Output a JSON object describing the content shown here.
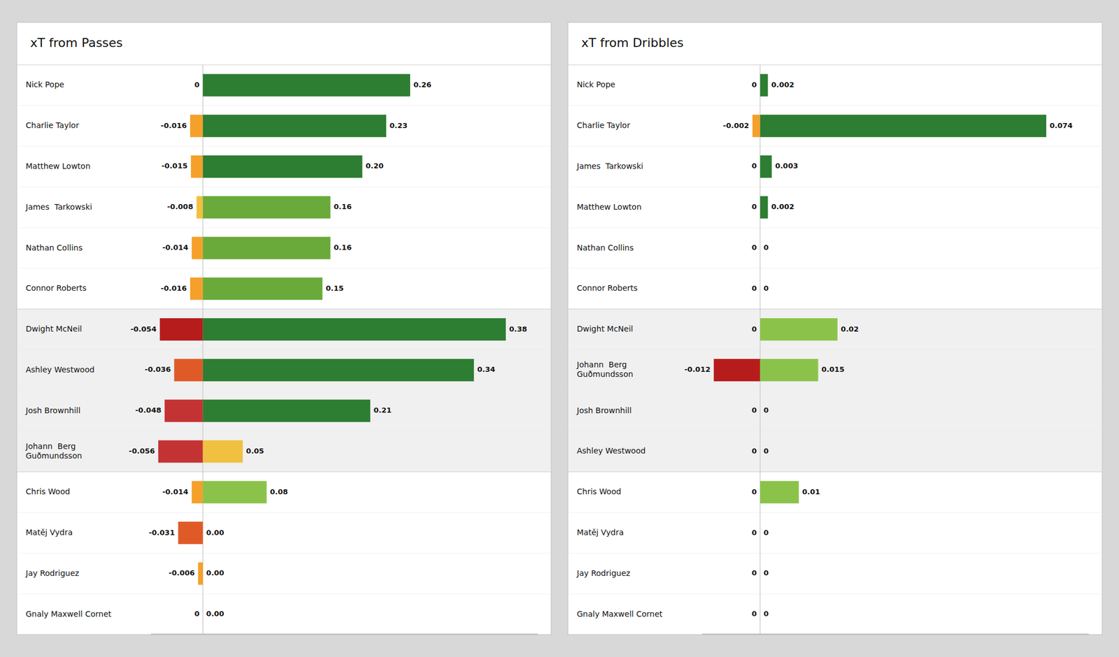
{
  "chart_data": [
    {
      "type": "bar",
      "orientation": "horizontal",
      "stacked": true,
      "title": "xT from Passes",
      "categories": [
        "Nick Pope",
        "Charlie Taylor",
        "Matthew Lowton",
        "James  Tarkowski",
        "Nathan Collins",
        "Connor Roberts",
        "Dwight McNeil",
        "Ashley Westwood",
        "Josh Brownhill",
        "Johann  Berg\nGuðmundsson",
        "Chris Wood",
        "Matěj Vydra",
        "Jay Rodriguez",
        "Gnaly Maxwell Cornet"
      ],
      "series": [
        {
          "values": [
            0.0,
            -0.016,
            -0.015,
            -0.008,
            -0.014,
            -0.016,
            -0.054,
            -0.036,
            -0.048,
            -0.056,
            -0.014,
            -0.031,
            -0.006,
            0.0
          ],
          "colors": [
            "#ffffff",
            "#f5a02a",
            "#f5a02a",
            "#f0c040",
            "#f5a02a",
            "#f5a02a",
            "#b71c1c",
            "#e05a28",
            "#c43333",
            "#c43333",
            "#f5a02a",
            "#e05a28",
            "#f5a02a",
            "#ffffff"
          ]
        },
        {
          "values": [
            0.26,
            0.23,
            0.2,
            0.16,
            0.16,
            0.15,
            0.38,
            0.34,
            0.21,
            0.05,
            0.08,
            0.0,
            0.0,
            0.0
          ],
          "value_labels": [
            "0.26",
            "0.23",
            "0.20",
            "0.16",
            "0.16",
            "0.15",
            "0.38",
            "0.34",
            "0.21",
            "0.05",
            "0.08",
            "0.00",
            "0.00",
            "0.00"
          ],
          "colors": [
            "#2d7d32",
            "#2d7d32",
            "#2d7d32",
            "#6aaa3a",
            "#6aaa3a",
            "#6aaa3a",
            "#2d7d32",
            "#2d7d32",
            "#2d7d32",
            "#f0c040",
            "#8bc34a",
            "#ffffff",
            "#ffffff",
            "#ffffff"
          ]
        }
      ],
      "xlim": [
        -0.065,
        0.42
      ],
      "tick_labels": false,
      "grid": false,
      "data_labels": true
    },
    {
      "type": "bar",
      "orientation": "horizontal",
      "stacked": true,
      "title": "xT from Dribbles",
      "categories": [
        "Nick Pope",
        "Charlie Taylor",
        "James  Tarkowski",
        "Matthew Lowton",
        "Nathan Collins",
        "Connor Roberts",
        "Dwight McNeil",
        "Johann  Berg\nGuðmundsson",
        "Josh Brownhill",
        "Ashley Westwood",
        "Chris Wood",
        "Matěj Vydra",
        "Jay Rodriguez",
        "Gnaly Maxwell Cornet"
      ],
      "series": [
        {
          "values": [
            0.0,
            -0.002,
            0.0,
            0.0,
            0.0,
            0.0,
            0.0,
            -0.012,
            0.0,
            0.0,
            0.0,
            0.0,
            0.0,
            0.0
          ],
          "colors": [
            "#ffffff",
            "#f5a02a",
            "#ffffff",
            "#ffffff",
            "#ffffff",
            "#ffffff",
            "#ffffff",
            "#b71c1c",
            "#ffffff",
            "#ffffff",
            "#ffffff",
            "#ffffff",
            "#ffffff",
            "#ffffff"
          ]
        },
        {
          "values": [
            0.002,
            0.074,
            0.003,
            0.002,
            0.0,
            0.0,
            0.02,
            0.015,
            0.0,
            0.0,
            0.01,
            0.0,
            0.0,
            0.0
          ],
          "colors": [
            "#2d7d32",
            "#2d7d32",
            "#2d7d32",
            "#2d7d32",
            "#ffffff",
            "#ffffff",
            "#8bc34a",
            "#8bc34a",
            "#ffffff",
            "#ffffff",
            "#8bc34a",
            "#ffffff",
            "#ffffff",
            "#ffffff"
          ]
        }
      ],
      "xlim": [
        -0.015,
        0.085
      ],
      "tick_labels": false,
      "grid": false,
      "data_labels": true
    }
  ]
}
